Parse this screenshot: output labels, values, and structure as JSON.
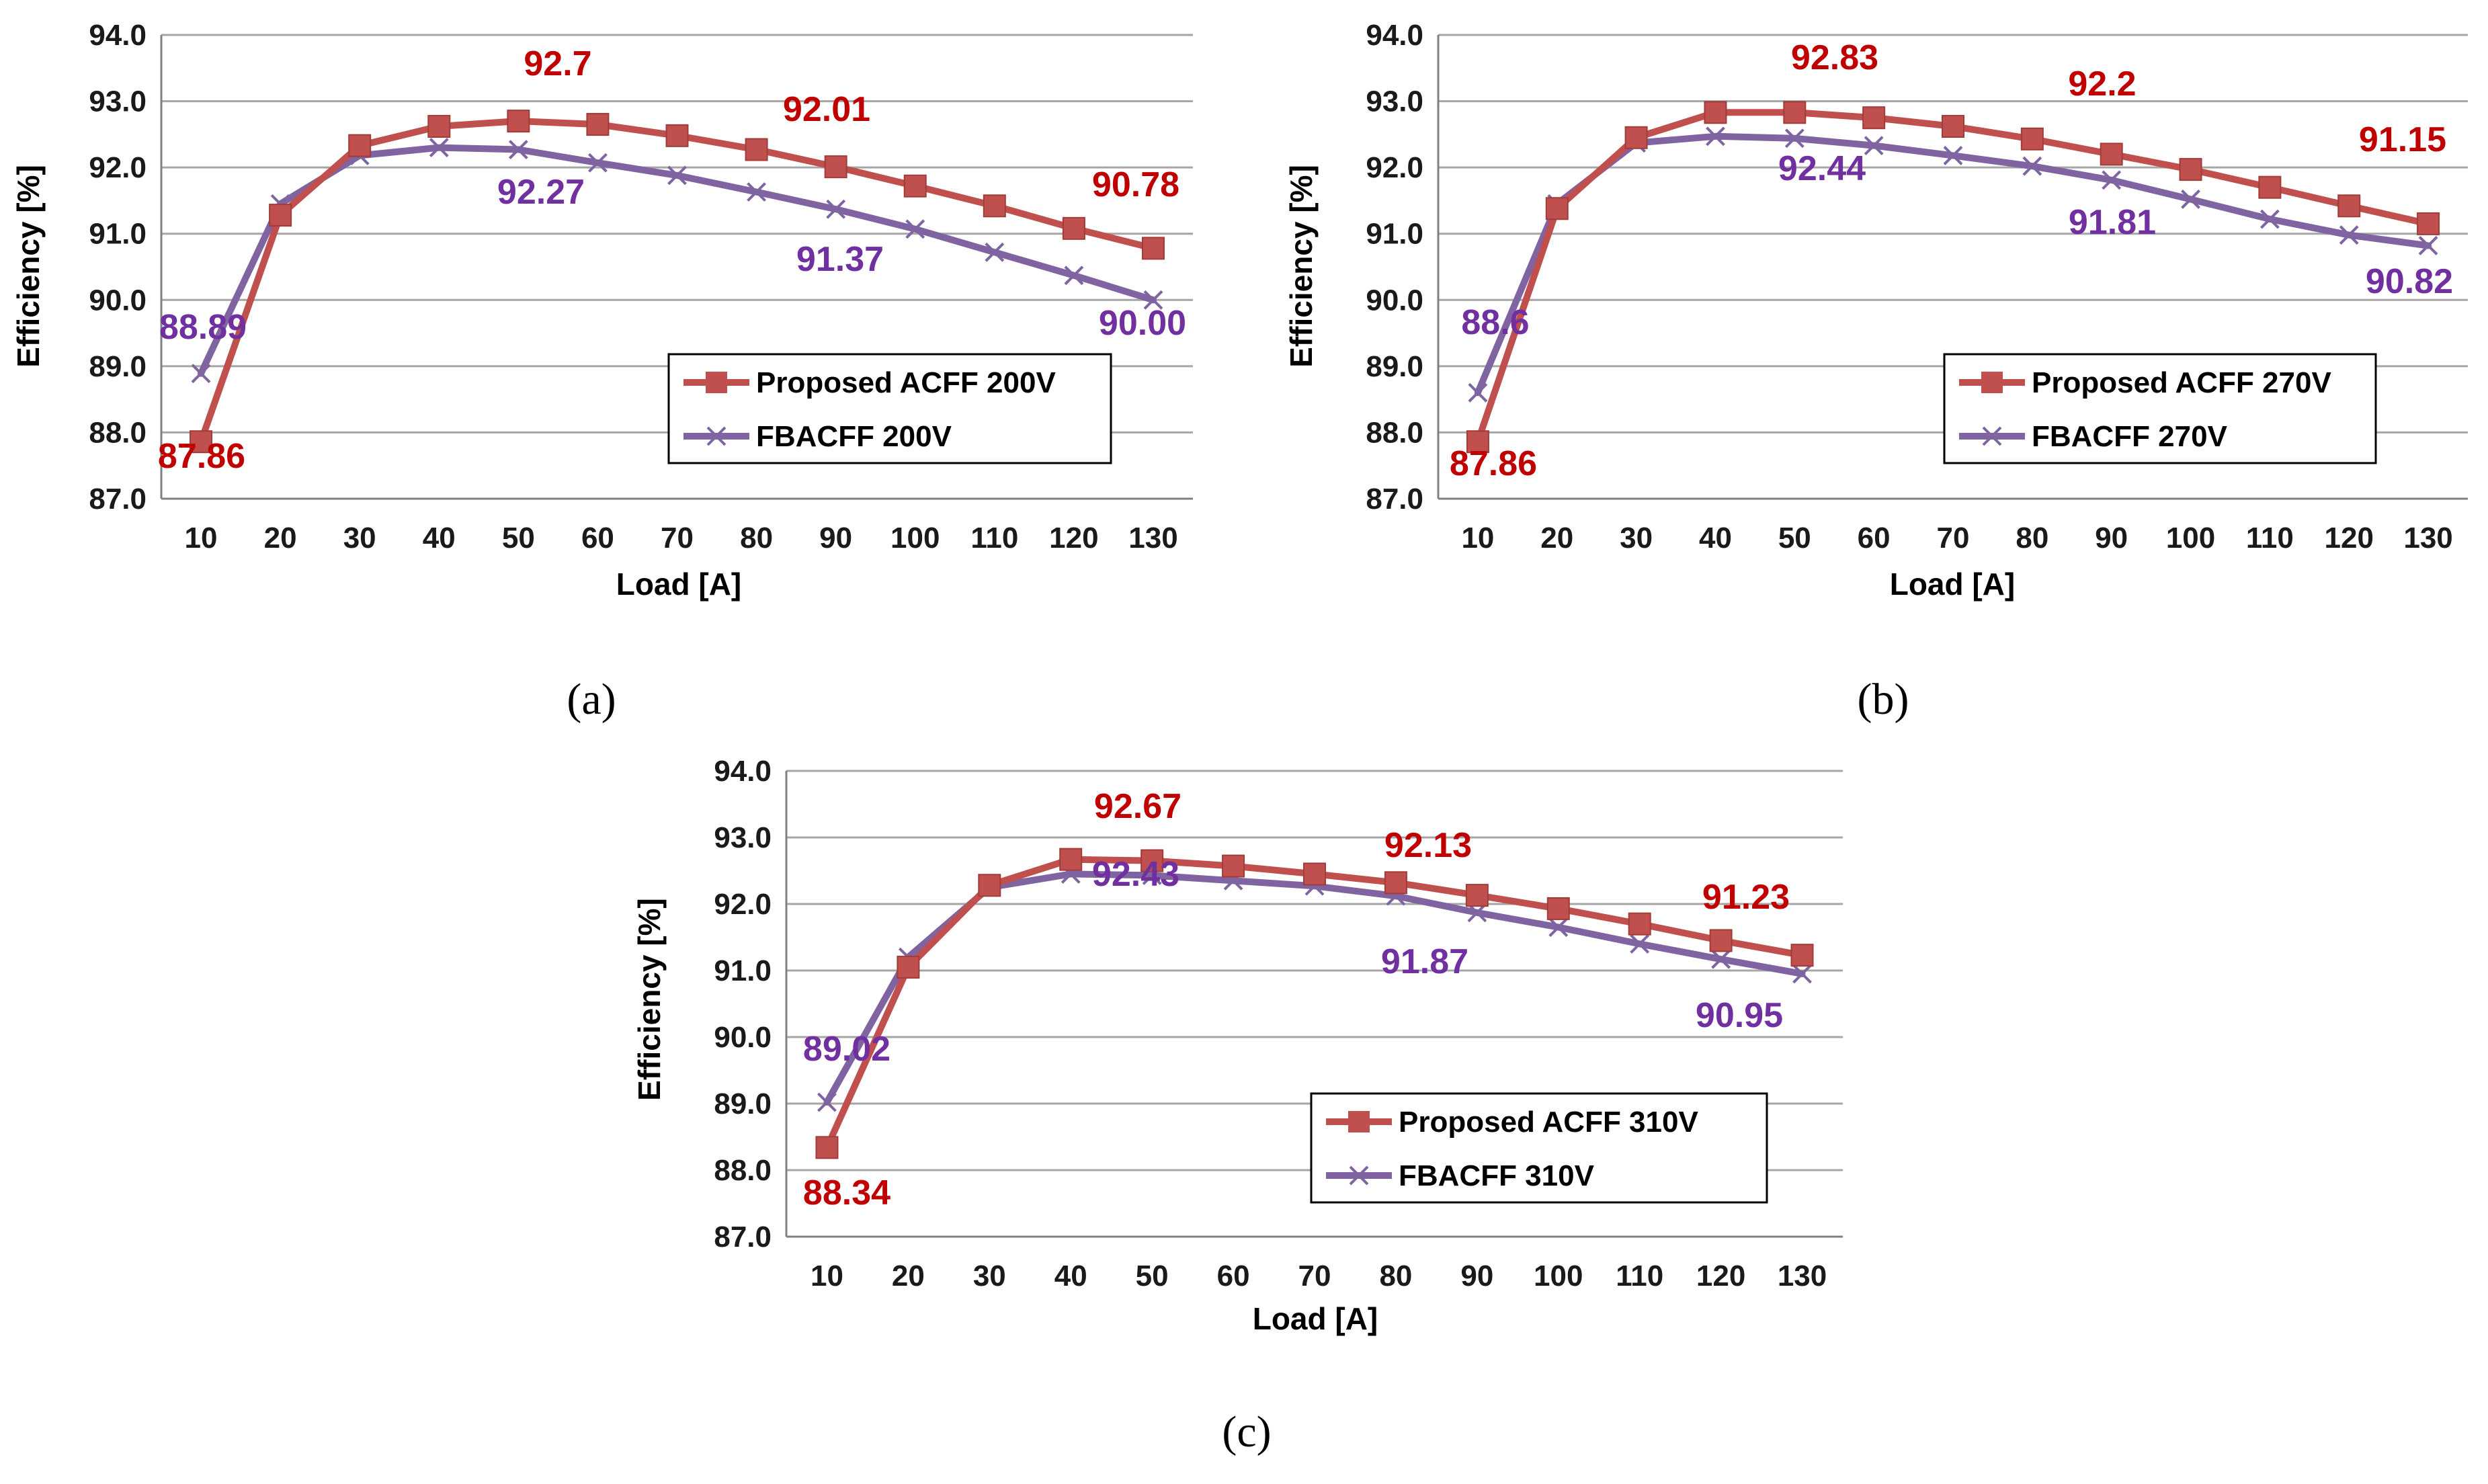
{
  "colors": {
    "proposed": "#c0504d",
    "fbacff": "#8064a2",
    "proposed_label": "#c00000",
    "fbacff_label": "#7030a0"
  },
  "chart_data": [
    {
      "type": "line",
      "panel_label": "(a)",
      "xlabel": "Load [A]",
      "ylabel": "Efficiency [%]",
      "ylim": [
        87.0,
        94.0
      ],
      "y_ticks": [
        "87.0",
        "88.0",
        "89.0",
        "90.0",
        "91.0",
        "92.0",
        "93.0",
        "94.0"
      ],
      "categories": [
        "10",
        "20",
        "30",
        "40",
        "50",
        "60",
        "70",
        "80",
        "90",
        "100",
        "110",
        "120",
        "130"
      ],
      "legend_position": "bottom-right",
      "series": [
        {
          "name": "Proposed ACFF 200V",
          "marker": "square",
          "values": [
            87.86,
            91.28,
            92.33,
            92.62,
            92.7,
            92.65,
            92.48,
            92.27,
            92.01,
            91.72,
            91.42,
            91.08,
            90.78
          ]
        },
        {
          "name": "FBACFF 200V",
          "marker": "x",
          "values": [
            88.89,
            91.45,
            92.18,
            92.3,
            92.27,
            92.07,
            91.88,
            91.63,
            91.37,
            91.07,
            90.72,
            90.37,
            90.0
          ]
        }
      ],
      "data_labels": [
        {
          "text": "92.7",
          "series": 0
        },
        {
          "text": "92.01",
          "series": 0
        },
        {
          "text": "90.78",
          "series": 0
        },
        {
          "text": "87.86",
          "series": 0
        },
        {
          "text": "88.89",
          "series": 1
        },
        {
          "text": "92.27",
          "series": 1
        },
        {
          "text": "91.37",
          "series": 1
        },
        {
          "text": "90.00",
          "series": 1
        }
      ]
    },
    {
      "type": "line",
      "panel_label": "(b)",
      "xlabel": "Load [A]",
      "ylabel": "Efficiency [%]",
      "ylim": [
        87.0,
        94.0
      ],
      "y_ticks": [
        "87.0",
        "88.0",
        "89.0",
        "90.0",
        "91.0",
        "92.0",
        "93.0",
        "94.0"
      ],
      "categories": [
        "10",
        "20",
        "30",
        "40",
        "50",
        "60",
        "70",
        "80",
        "90",
        "100",
        "110",
        "120",
        "130"
      ],
      "legend_position": "bottom-right",
      "series": [
        {
          "name": "Proposed ACFF 270V",
          "marker": "square",
          "values": [
            87.86,
            91.38,
            92.45,
            92.83,
            92.83,
            92.75,
            92.62,
            92.43,
            92.2,
            91.97,
            91.7,
            91.42,
            91.15
          ]
        },
        {
          "name": "FBACFF 270V",
          "marker": "x",
          "values": [
            88.6,
            91.45,
            92.37,
            92.47,
            92.44,
            92.33,
            92.18,
            92.02,
            91.81,
            91.52,
            91.22,
            90.98,
            90.82
          ]
        }
      ],
      "data_labels": [
        {
          "text": "92.83",
          "series": 0
        },
        {
          "text": "92.2",
          "series": 0
        },
        {
          "text": "91.15",
          "series": 0
        },
        {
          "text": "87.86",
          "series": 0
        },
        {
          "text": "88.6",
          "series": 1
        },
        {
          "text": "92.44",
          "series": 1
        },
        {
          "text": "91.81",
          "series": 1
        },
        {
          "text": "90.82",
          "series": 1
        }
      ]
    },
    {
      "type": "line",
      "panel_label": "(c)",
      "xlabel": "Load [A]",
      "ylabel": "Efficiency [%]",
      "ylim": [
        87.0,
        94.0
      ],
      "y_ticks": [
        "87.0",
        "88.0",
        "89.0",
        "90.0",
        "91.0",
        "92.0",
        "93.0",
        "94.0"
      ],
      "categories": [
        "10",
        "20",
        "30",
        "40",
        "50",
        "60",
        "70",
        "80",
        "90",
        "100",
        "110",
        "120",
        "130"
      ],
      "legend_position": "bottom-right",
      "series": [
        {
          "name": "Proposed ACFF 310V",
          "marker": "square",
          "values": [
            88.34,
            91.05,
            92.28,
            92.67,
            92.65,
            92.57,
            92.45,
            92.32,
            92.13,
            91.93,
            91.7,
            91.45,
            91.23
          ]
        },
        {
          "name": "FBACFF 310V",
          "marker": "x",
          "values": [
            89.02,
            91.2,
            92.25,
            92.45,
            92.43,
            92.35,
            92.27,
            92.12,
            91.87,
            91.65,
            91.4,
            91.17,
            90.95
          ]
        }
      ],
      "data_labels": [
        {
          "text": "92.67",
          "series": 0
        },
        {
          "text": "92.13",
          "series": 0
        },
        {
          "text": "91.23",
          "series": 0
        },
        {
          "text": "88.34",
          "series": 0
        },
        {
          "text": "89.02",
          "series": 1
        },
        {
          "text": "92.43",
          "series": 1
        },
        {
          "text": "91.87",
          "series": 1
        },
        {
          "text": "90.95",
          "series": 1
        }
      ]
    }
  ]
}
